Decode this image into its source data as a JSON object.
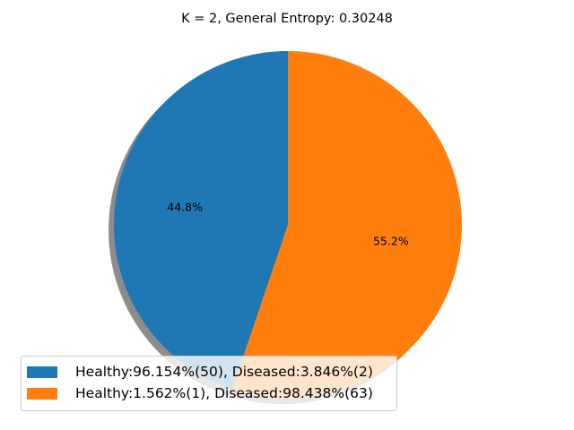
{
  "chart_data": {
    "type": "pie",
    "title": "K = 2, General Entropy: 0.30248",
    "slices": [
      {
        "label": "Healthy:96.154%(50), Diseased:3.846%(2)",
        "value": 44.8,
        "pct_label": "44.8%",
        "color": "#1f77b4"
      },
      {
        "label": "Healthy:1.562%(1), Diseased:98.438%(63)",
        "value": 55.2,
        "pct_label": "55.2%",
        "color": "#ff7f0e"
      }
    ],
    "start_angle_deg": 90,
    "direction": "counterclockwise",
    "shadow": true,
    "legend_position": "lower-left"
  }
}
